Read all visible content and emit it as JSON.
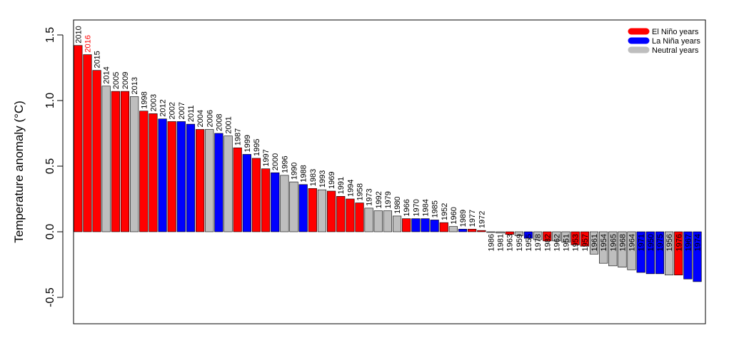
{
  "chart_data": {
    "type": "bar",
    "ylabel": "Temperature anomaly (°C)",
    "ylim": [
      -0.7,
      1.5
    ],
    "yticks": [
      "-0.5",
      "0.0",
      "0.5",
      "1.0",
      "1.5"
    ],
    "ytick_values": [
      -0.5,
      0.0,
      0.5,
      1.0,
      1.5
    ],
    "grid": false,
    "legend_placement": "top-right",
    "legend": [
      {
        "key": "el_nino",
        "label": "El Niño  years",
        "color": "#ff0000"
      },
      {
        "key": "la_nina",
        "label": "La Niña years",
        "color": "#0000ff"
      },
      {
        "key": "neutral",
        "label": "Neutral years",
        "color": "#bebebe"
      }
    ],
    "highlight_color": "#ff0000",
    "bars": [
      {
        "year": "2010",
        "value": 1.42,
        "type": "el_nino"
      },
      {
        "year": "2016",
        "value": 1.35,
        "type": "el_nino",
        "highlight": true
      },
      {
        "year": "2015",
        "value": 1.23,
        "type": "el_nino"
      },
      {
        "year": "2014",
        "value": 1.11,
        "type": "neutral"
      },
      {
        "year": "2005",
        "value": 1.07,
        "type": "el_nino"
      },
      {
        "year": "2009",
        "value": 1.07,
        "type": "el_nino"
      },
      {
        "year": "2013",
        "value": 1.03,
        "type": "neutral"
      },
      {
        "year": "1998",
        "value": 0.92,
        "type": "el_nino"
      },
      {
        "year": "2003",
        "value": 0.9,
        "type": "el_nino"
      },
      {
        "year": "2012",
        "value": 0.86,
        "type": "la_nina"
      },
      {
        "year": "2002",
        "value": 0.84,
        "type": "el_nino"
      },
      {
        "year": "2007",
        "value": 0.84,
        "type": "la_nina"
      },
      {
        "year": "2011",
        "value": 0.82,
        "type": "la_nina"
      },
      {
        "year": "2004",
        "value": 0.78,
        "type": "el_nino"
      },
      {
        "year": "2006",
        "value": 0.78,
        "type": "neutral"
      },
      {
        "year": "2008",
        "value": 0.75,
        "type": "la_nina"
      },
      {
        "year": "2001",
        "value": 0.73,
        "type": "neutral"
      },
      {
        "year": "1987",
        "value": 0.64,
        "type": "el_nino"
      },
      {
        "year": "1999",
        "value": 0.59,
        "type": "la_nina"
      },
      {
        "year": "1995",
        "value": 0.56,
        "type": "el_nino"
      },
      {
        "year": "1997",
        "value": 0.48,
        "type": "el_nino"
      },
      {
        "year": "2000",
        "value": 0.45,
        "type": "la_nina"
      },
      {
        "year": "1996",
        "value": 0.43,
        "type": "neutral"
      },
      {
        "year": "1990",
        "value": 0.38,
        "type": "neutral"
      },
      {
        "year": "1988",
        "value": 0.36,
        "type": "la_nina"
      },
      {
        "year": "1983",
        "value": 0.33,
        "type": "el_nino"
      },
      {
        "year": "1993",
        "value": 0.32,
        "type": "neutral"
      },
      {
        "year": "1969",
        "value": 0.31,
        "type": "el_nino"
      },
      {
        "year": "1991",
        "value": 0.27,
        "type": "el_nino"
      },
      {
        "year": "1994",
        "value": 0.25,
        "type": "el_nino"
      },
      {
        "year": "1958",
        "value": 0.22,
        "type": "el_nino"
      },
      {
        "year": "1973",
        "value": 0.18,
        "type": "neutral"
      },
      {
        "year": "1992",
        "value": 0.16,
        "type": "neutral"
      },
      {
        "year": "1979",
        "value": 0.16,
        "type": "neutral"
      },
      {
        "year": "1980",
        "value": 0.12,
        "type": "neutral"
      },
      {
        "year": "1966",
        "value": 0.1,
        "type": "el_nino"
      },
      {
        "year": "1970",
        "value": 0.1,
        "type": "la_nina"
      },
      {
        "year": "1984",
        "value": 0.1,
        "type": "la_nina"
      },
      {
        "year": "1985",
        "value": 0.09,
        "type": "la_nina"
      },
      {
        "year": "1952",
        "value": 0.07,
        "type": "el_nino"
      },
      {
        "year": "1960",
        "value": 0.04,
        "type": "neutral"
      },
      {
        "year": "1989",
        "value": 0.02,
        "type": "la_nina"
      },
      {
        "year": "1977",
        "value": 0.02,
        "type": "el_nino"
      },
      {
        "year": "1972",
        "value": 0.01,
        "type": "el_nino"
      },
      {
        "year": "1986",
        "value": -0.005,
        "type": "neutral"
      },
      {
        "year": "1981",
        "value": -0.01,
        "type": "neutral"
      },
      {
        "year": "1963",
        "value": -0.02,
        "type": "el_nino"
      },
      {
        "year": "1959",
        "value": -0.03,
        "type": "neutral"
      },
      {
        "year": "1955",
        "value": -0.05,
        "type": "la_nina"
      },
      {
        "year": "1978",
        "value": -0.06,
        "type": "neutral"
      },
      {
        "year": "1982",
        "value": -0.07,
        "type": "el_nino"
      },
      {
        "year": "1962",
        "value": -0.07,
        "type": "neutral"
      },
      {
        "year": "1951",
        "value": -0.08,
        "type": "neutral"
      },
      {
        "year": "1953",
        "value": -0.1,
        "type": "el_nino"
      },
      {
        "year": "1957",
        "value": -0.11,
        "type": "el_nino"
      },
      {
        "year": "1961",
        "value": -0.17,
        "type": "neutral"
      },
      {
        "year": "1954",
        "value": -0.24,
        "type": "neutral"
      },
      {
        "year": "1965",
        "value": -0.26,
        "type": "neutral"
      },
      {
        "year": "1968",
        "value": -0.27,
        "type": "neutral"
      },
      {
        "year": "1964",
        "value": -0.29,
        "type": "neutral"
      },
      {
        "year": "1971",
        "value": -0.31,
        "type": "la_nina"
      },
      {
        "year": "1950",
        "value": -0.32,
        "type": "la_nina"
      },
      {
        "year": "1975",
        "value": -0.32,
        "type": "la_nina"
      },
      {
        "year": "1956",
        "value": -0.33,
        "type": "neutral"
      },
      {
        "year": "1976",
        "value": -0.33,
        "type": "el_nino"
      },
      {
        "year": "1967",
        "value": -0.36,
        "type": "la_nina"
      },
      {
        "year": "1974",
        "value": -0.38,
        "type": "la_nina"
      }
    ]
  }
}
